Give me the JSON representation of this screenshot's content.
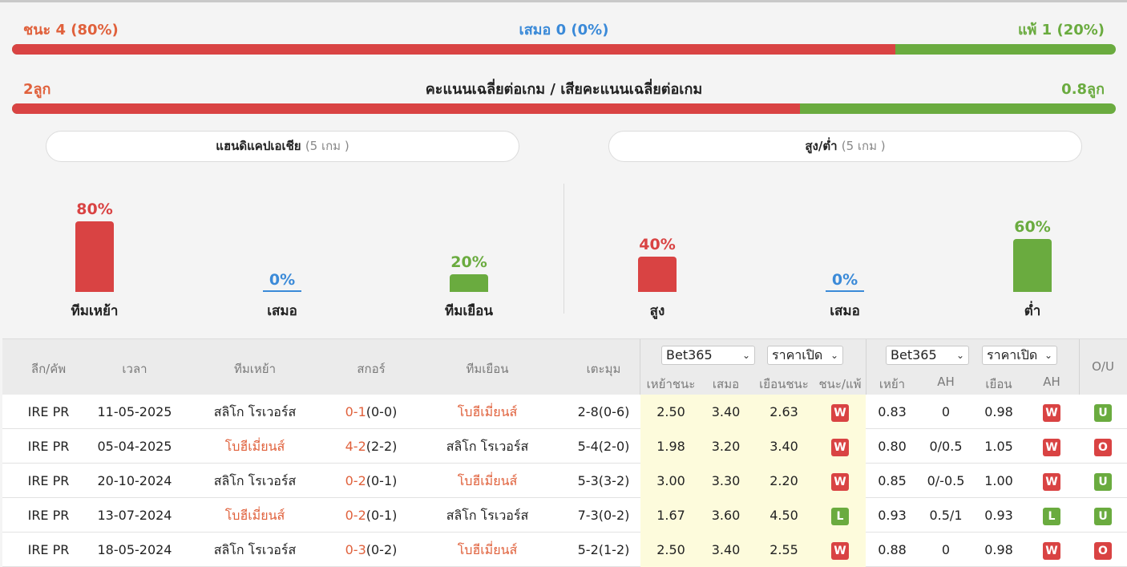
{
  "summary": {
    "win_label": "ชนะ 4 (80%)",
    "draw_label": "เสมอ 0 (0%)",
    "loss_label": "แพ้ 1 (20%)",
    "win_share": 0.8,
    "goals_for_label": "2ลูก",
    "goals_title": "คะแนนเฉลี่ยต่อเกม / เสียคะแนนเฉลี่ยต่อเกม",
    "goals_against_label": "0.8ลูก",
    "goals_for_share": 0.714
  },
  "handicap": {
    "title": "แฮนดิแคปเอเชีย",
    "count": "(5 เกม )",
    "bars": [
      {
        "pct_label": "80%",
        "value": 80,
        "label": "ทีมเหย้า",
        "color": "#d94343"
      },
      {
        "pct_label": "0%",
        "value": 0,
        "label": "เสมอ",
        "color": "#3b8ad8"
      },
      {
        "pct_label": "20%",
        "value": 20,
        "label": "ทีมเยือน",
        "color": "#6aab3f"
      }
    ]
  },
  "overunder": {
    "title": "สูง/ต่ำ",
    "count": "(5 เกม )",
    "bars": [
      {
        "pct_label": "40%",
        "value": 40,
        "label": "สูง",
        "color": "#d94343"
      },
      {
        "pct_label": "0%",
        "value": 0,
        "label": "เสมอ",
        "color": "#3b8ad8"
      },
      {
        "pct_label": "60%",
        "value": 60,
        "label": "ต่ำ",
        "color": "#6aab3f"
      }
    ]
  },
  "table": {
    "headers": {
      "league": "ลีก/คัพ",
      "time": "เวลา",
      "home": "ทีมเหย้า",
      "score": "สกอร์",
      "away": "ทีมเยือน",
      "corner": "เตะมุม",
      "ou": "O/U"
    },
    "bookmaker1": "Bet365",
    "price1": "ราคาเปิด",
    "bookmaker2": "Bet365",
    "price2": "ราคาเปิด",
    "sub1": [
      "เหย้าชนะ",
      "เสมอ",
      "เยือนชนะ",
      "ชนะ/แพ้"
    ],
    "sub2": [
      "เหย้า",
      "AH",
      "เยือน",
      "AH"
    ],
    "rows": [
      {
        "league": "IRE PR",
        "date": "11-05-2025",
        "home": "สลิโก โรเวอร์ส",
        "score_a": "0-1",
        "score_b": "(0-0)",
        "away": "โบฮีเมี่ยนส์",
        "home_orange": false,
        "away_orange": true,
        "corner": "2-8(0-6)",
        "h": "2.50",
        "d": "3.40",
        "a": "2.63",
        "res": "W",
        "ah_h": "0.83",
        "ah": "0",
        "ah_a": "0.98",
        "ah_res": "W",
        "ou": "U"
      },
      {
        "league": "IRE PR",
        "date": "05-04-2025",
        "home": "โบฮีเมี่ยนส์",
        "score_a": "4-2",
        "score_b": "(2-2)",
        "away": "สลิโก โรเวอร์ส",
        "home_orange": true,
        "away_orange": false,
        "corner": "5-4(2-0)",
        "h": "1.98",
        "d": "3.20",
        "a": "3.40",
        "res": "W",
        "ah_h": "0.80",
        "ah": "0/0.5",
        "ah_a": "1.05",
        "ah_res": "W",
        "ou": "O"
      },
      {
        "league": "IRE PR",
        "date": "20-10-2024",
        "home": "สลิโก โรเวอร์ส",
        "score_a": "0-2",
        "score_b": "(0-1)",
        "away": "โบฮีเมี่ยนส์",
        "home_orange": false,
        "away_orange": true,
        "corner": "5-3(3-2)",
        "h": "3.00",
        "d": "3.30",
        "a": "2.20",
        "res": "W",
        "ah_h": "0.85",
        "ah": "0/-0.5",
        "ah_a": "1.00",
        "ah_res": "W",
        "ou": "U"
      },
      {
        "league": "IRE PR",
        "date": "13-07-2024",
        "home": "โบฮีเมี่ยนส์",
        "score_a": "0-2",
        "score_b": "(0-1)",
        "away": "สลิโก โรเวอร์ส",
        "home_orange": true,
        "away_orange": false,
        "corner": "7-3(0-2)",
        "h": "1.67",
        "d": "3.60",
        "a": "4.50",
        "res": "L",
        "ah_h": "0.93",
        "ah": "0.5/1",
        "ah_a": "0.93",
        "ah_res": "L",
        "ou": "U"
      },
      {
        "league": "IRE PR",
        "date": "18-05-2024",
        "home": "สลิโก โรเวอร์ส",
        "score_a": "0-3",
        "score_b": "(0-2)",
        "away": "โบฮีเมี่ยนส์",
        "home_orange": false,
        "away_orange": true,
        "corner": "5-2(1-2)",
        "h": "2.50",
        "d": "3.40",
        "a": "2.55",
        "res": "W",
        "ah_h": "0.88",
        "ah": "0",
        "ah_a": "0.98",
        "ah_res": "W",
        "ou": "O"
      }
    ]
  }
}
